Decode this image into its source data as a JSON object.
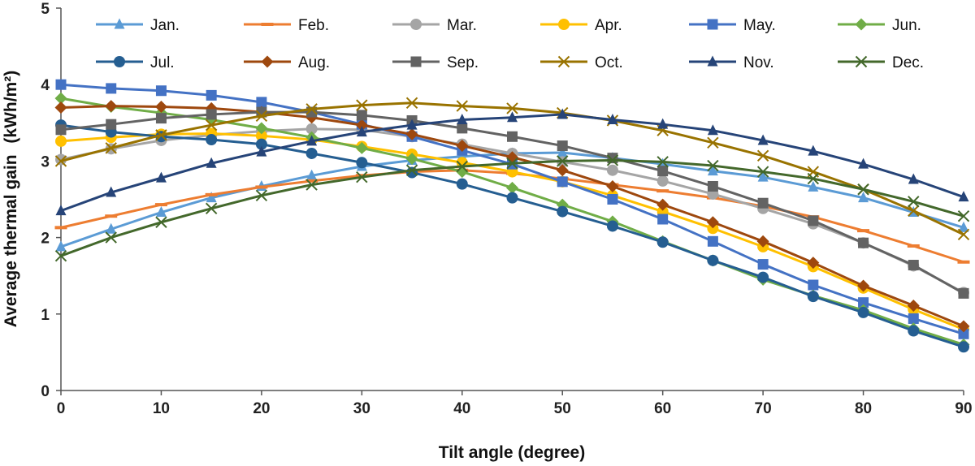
{
  "chart_data": {
    "type": "line",
    "title": "",
    "xlabel": "Tilt angle (degree)",
    "ylabel": "Average thermal gain",
    "ylabel_unit": "(kWh/m²)",
    "xlim": [
      0,
      90
    ],
    "ylim": [
      0,
      5
    ],
    "x_ticks": [
      "0",
      "10",
      "20",
      "30",
      "40",
      "50",
      "60",
      "70",
      "80",
      "90"
    ],
    "y_ticks": [
      "0",
      "1",
      "2",
      "3",
      "4",
      "5"
    ],
    "grid": false,
    "legend_position": "top",
    "x": [
      0,
      5,
      10,
      15,
      20,
      25,
      30,
      35,
      40,
      45,
      50,
      55,
      60,
      65,
      70,
      75,
      80,
      85,
      90
    ],
    "series": [
      {
        "name": "Jan.",
        "color": "#5B9BD5",
        "marker": "triangle",
        "values": [
          1.88,
          2.11,
          2.33,
          2.52,
          2.67,
          2.81,
          2.93,
          3.01,
          3.06,
          3.1,
          3.11,
          3.04,
          2.96,
          2.87,
          2.79,
          2.66,
          2.52,
          2.33,
          2.13
        ]
      },
      {
        "name": "Feb.",
        "color": "#ED7D31",
        "marker": "dash",
        "values": [
          2.13,
          2.28,
          2.43,
          2.56,
          2.66,
          2.74,
          2.81,
          2.86,
          2.88,
          2.84,
          2.77,
          2.69,
          2.61,
          2.52,
          2.41,
          2.27,
          2.09,
          1.89,
          1.68
        ]
      },
      {
        "name": "Mar.",
        "color": "#A5A5A5",
        "marker": "circle",
        "values": [
          3.02,
          3.16,
          3.27,
          3.34,
          3.39,
          3.42,
          3.41,
          3.32,
          3.22,
          3.1,
          2.99,
          2.88,
          2.74,
          2.57,
          2.38,
          2.18,
          1.93,
          1.63,
          1.28
        ]
      },
      {
        "name": "Apr.",
        "color": "#FFC000",
        "marker": "circle",
        "values": [
          3.26,
          3.31,
          3.35,
          3.36,
          3.33,
          3.28,
          3.19,
          3.09,
          2.98,
          2.86,
          2.73,
          2.55,
          2.34,
          2.12,
          1.88,
          1.62,
          1.34,
          1.06,
          0.8
        ]
      },
      {
        "name": "May.",
        "color": "#4472C4",
        "marker": "square",
        "values": [
          4.0,
          3.95,
          3.92,
          3.86,
          3.77,
          3.64,
          3.48,
          3.32,
          3.14,
          2.96,
          2.73,
          2.5,
          2.24,
          1.95,
          1.65,
          1.38,
          1.15,
          0.94,
          0.74
        ]
      },
      {
        "name": "Jun.",
        "color": "#70AD47",
        "marker": "diamond",
        "values": [
          3.82,
          3.71,
          3.63,
          3.54,
          3.43,
          3.31,
          3.17,
          3.03,
          2.86,
          2.65,
          2.43,
          2.21,
          1.95,
          1.7,
          1.45,
          1.24,
          1.05,
          0.81,
          0.6
        ]
      },
      {
        "name": "Jul.",
        "color": "#255E91",
        "marker": "circle",
        "values": [
          3.47,
          3.38,
          3.32,
          3.28,
          3.22,
          3.1,
          2.98,
          2.85,
          2.7,
          2.52,
          2.34,
          2.15,
          1.94,
          1.7,
          1.48,
          1.23,
          1.02,
          0.78,
          0.57
        ]
      },
      {
        "name": "Aug.",
        "color": "#9E480E",
        "marker": "diamond",
        "values": [
          3.7,
          3.72,
          3.71,
          3.69,
          3.64,
          3.57,
          3.47,
          3.35,
          3.2,
          3.05,
          2.88,
          2.67,
          2.43,
          2.2,
          1.95,
          1.67,
          1.37,
          1.11,
          0.84
        ]
      },
      {
        "name": "Sep.",
        "color": "#636363",
        "marker": "square",
        "values": [
          3.41,
          3.48,
          3.56,
          3.61,
          3.64,
          3.64,
          3.6,
          3.53,
          3.43,
          3.32,
          3.2,
          3.04,
          2.87,
          2.67,
          2.45,
          2.22,
          1.93,
          1.64,
          1.27
        ]
      },
      {
        "name": "Oct.",
        "color": "#997300",
        "marker": "x",
        "values": [
          3.0,
          3.17,
          3.34,
          3.47,
          3.59,
          3.68,
          3.73,
          3.76,
          3.72,
          3.69,
          3.63,
          3.53,
          3.4,
          3.24,
          3.07,
          2.86,
          2.63,
          2.35,
          2.04
        ]
      },
      {
        "name": "Nov.",
        "color": "#264478",
        "marker": "triangle",
        "values": [
          2.35,
          2.59,
          2.78,
          2.97,
          3.12,
          3.26,
          3.38,
          3.47,
          3.54,
          3.57,
          3.61,
          3.54,
          3.48,
          3.4,
          3.27,
          3.13,
          2.96,
          2.76,
          2.53
        ]
      },
      {
        "name": "Dec.",
        "color": "#43682B",
        "marker": "x",
        "values": [
          1.76,
          2.0,
          2.2,
          2.38,
          2.55,
          2.69,
          2.79,
          2.88,
          2.93,
          2.97,
          3.0,
          3.01,
          2.99,
          2.94,
          2.86,
          2.77,
          2.63,
          2.47,
          2.28
        ]
      }
    ]
  }
}
